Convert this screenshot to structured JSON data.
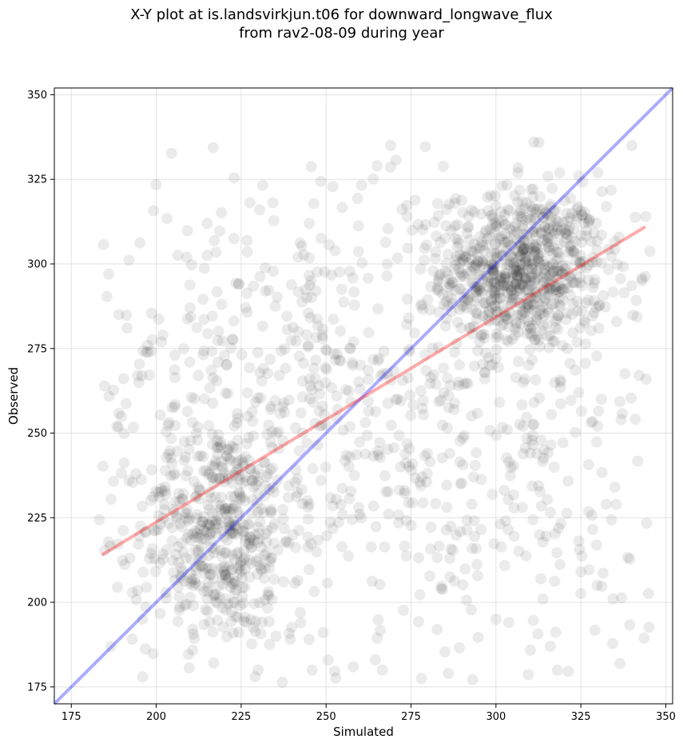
{
  "chart_data": {
    "type": "scatter",
    "title_lines": [
      "X-Y plot at is.landsvirkjun.t06 for downward_longwave_flux",
      "from rav2-08-09 during year"
    ],
    "xlabel": "Simulated",
    "ylabel": "Observed",
    "xlim": [
      170,
      352
    ],
    "ylim": [
      170,
      352
    ],
    "x_ticks": [
      "175",
      "200",
      "225",
      "250",
      "275",
      "300",
      "325",
      "350"
    ],
    "y_ticks": [
      "175",
      "200",
      "225",
      "250",
      "275",
      "300",
      "325",
      "350"
    ],
    "grid": true,
    "point_color": "#000000",
    "point_opacity": 0.08,
    "clusters": [
      {
        "cx": 308,
        "cy": 298,
        "sx": 12,
        "sy": 12,
        "n": 700
      },
      {
        "cx": 218,
        "cy": 220,
        "sx": 12,
        "sy": 16,
        "n": 450
      },
      {
        "cx": 232,
        "cy": 265,
        "sx": 26,
        "sy": 32,
        "n": 300
      },
      {
        "cx": 295,
        "cy": 245,
        "sx": 28,
        "sy": 38,
        "n": 350
      },
      {
        "cx": 265,
        "cy": 268,
        "sx": 45,
        "sy": 45,
        "n": 250
      }
    ],
    "identity_line": {
      "color": "#0000ff",
      "points": [
        [
          170,
          170
        ],
        [
          352,
          352
        ]
      ]
    },
    "fit_line": {
      "color": "#ff0000",
      "points": [
        [
          184,
          214
        ],
        [
          344,
          311
        ]
      ]
    },
    "sample_points": [
      [
        186,
        297
      ],
      [
        340,
        335
      ],
      [
        265,
        329
      ],
      [
        245,
        189
      ],
      [
        230,
        180
      ],
      [
        196,
        178
      ],
      [
        325,
        209
      ],
      [
        335,
        234
      ],
      [
        300,
        195
      ],
      [
        316,
        187
      ],
      [
        286,
        179
      ],
      [
        215,
        312
      ],
      [
        209,
        302
      ],
      [
        330,
        327
      ],
      [
        189,
        285
      ]
    ]
  }
}
